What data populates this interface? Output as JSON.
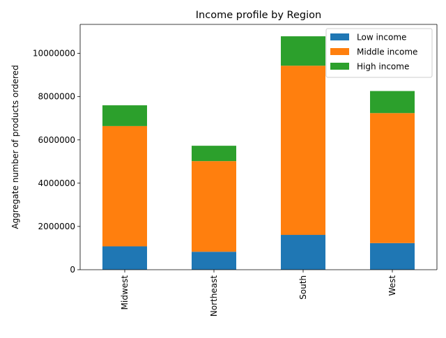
{
  "chart_data": {
    "type": "bar",
    "stacked": true,
    "title": "Income profile by Region",
    "xlabel": "",
    "ylabel": "Aggregate number of products ordered",
    "categories": [
      "Midwest",
      "Northeast",
      "South",
      "West"
    ],
    "series": [
      {
        "name": "Low income",
        "color": "#1f77b4",
        "values": [
          1080000,
          830000,
          1610000,
          1230000
        ]
      },
      {
        "name": "Middle income",
        "color": "#ff7f0e",
        "values": [
          5560000,
          4190000,
          7820000,
          6010000
        ]
      },
      {
        "name": "High income",
        "color": "#2ca02c",
        "values": [
          960000,
          710000,
          1360000,
          1020000
        ]
      }
    ],
    "ylim": [
      0,
      11340000
    ],
    "yticks": [
      0,
      2000000,
      4000000,
      6000000,
      8000000,
      10000000
    ],
    "ytick_labels": [
      "0",
      "2000000",
      "4000000",
      "6000000",
      "8000000",
      "10000000"
    ],
    "grid": false,
    "legend_position": "top-right"
  }
}
